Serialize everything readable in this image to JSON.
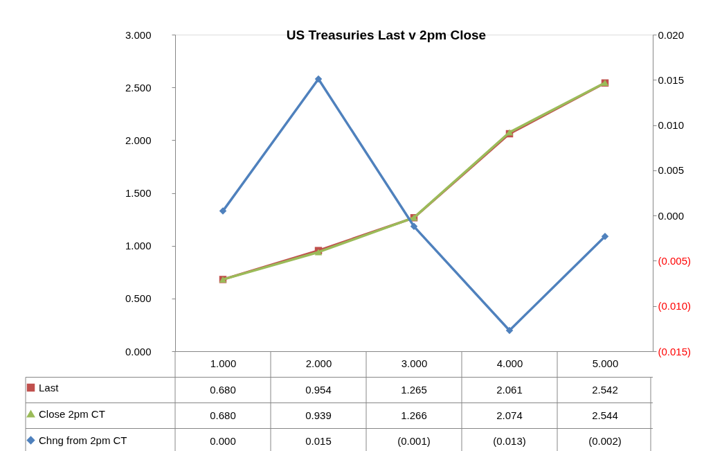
{
  "chart_data": {
    "type": "line",
    "title": "US Treasuries Last v 2pm Close",
    "categories": [
      "1.000",
      "2.000",
      "3.000",
      "4.000",
      "5.000"
    ],
    "series": [
      {
        "name": "Last",
        "color": "#c0504d",
        "marker": "square",
        "values": [
          0.68,
          0.954,
          1.265,
          2.061,
          2.542
        ],
        "value_labels": [
          "0.680",
          "0.954",
          "1.265",
          "2.061",
          "2.542"
        ]
      },
      {
        "name": "Close 2pm CT",
        "color": "#9bbb59",
        "marker": "triangle",
        "values": [
          0.68,
          0.939,
          1.266,
          2.074,
          2.544
        ],
        "value_labels": [
          "0.680",
          "0.939",
          "1.266",
          "2.074",
          "2.544"
        ]
      },
      {
        "name": "Chng from 2pm CT",
        "color": "#4f81bd",
        "marker": "diamond",
        "axis": "y2",
        "values": [
          0.0005,
          0.0151,
          -0.0012,
          -0.0127,
          -0.0023
        ],
        "value_labels": [
          "0.000",
          "0.015",
          "(0.001)",
          "(0.013)",
          "(0.002)"
        ]
      }
    ],
    "ylim": [
      0,
      3
    ],
    "yticks": [
      {
        "value": 0,
        "label": "0.000"
      },
      {
        "value": 0.5,
        "label": "0.500"
      },
      {
        "value": 1,
        "label": "1.000"
      },
      {
        "value": 1.5,
        "label": "1.500"
      },
      {
        "value": 2,
        "label": "2.000"
      },
      {
        "value": 2.5,
        "label": "2.500"
      },
      {
        "value": 3,
        "label": "3.000"
      }
    ],
    "y2lim": [
      -0.015,
      0.02
    ],
    "y2ticks": [
      {
        "value": -0.015,
        "label": "(0.015)"
      },
      {
        "value": -0.01,
        "label": "(0.010)"
      },
      {
        "value": -0.005,
        "label": "(0.005)"
      },
      {
        "value": 0,
        "label": "0.000"
      },
      {
        "value": 0.005,
        "label": "0.005"
      },
      {
        "value": 0.01,
        "label": "0.010"
      },
      {
        "value": 0.015,
        "label": "0.015"
      },
      {
        "value": 0.02,
        "label": "0.020"
      }
    ],
    "grid": false,
    "legend": "bottom left"
  }
}
